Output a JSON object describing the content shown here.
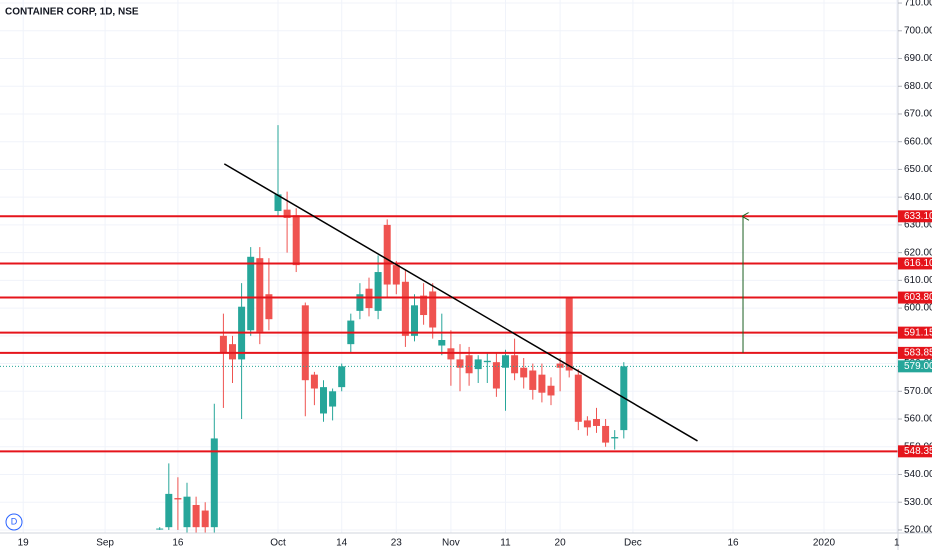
{
  "chart_data": {
    "type": "candlestick",
    "title": "CONTAINER CORP, 1D, NSE",
    "badge": "D",
    "categories": [
      "19",
      null,
      null,
      null,
      null,
      null,
      null,
      null,
      null,
      "Sep",
      null,
      null,
      null,
      null,
      null,
      null,
      null,
      "16",
      null,
      null,
      null,
      null,
      null,
      null,
      null,
      null,
      null,
      null,
      "Oct",
      null,
      null,
      null,
      null,
      null,
      null,
      "14",
      null,
      null,
      null,
      null,
      null,
      "23",
      null,
      null,
      null,
      null,
      null,
      "Nov",
      null,
      null,
      null,
      null,
      null,
      "11",
      null,
      null,
      null,
      null,
      null,
      "20",
      null,
      null,
      null,
      null,
      null,
      null,
      null,
      "Dec",
      null,
      null,
      null,
      null,
      null,
      null,
      null,
      null,
      null,
      null,
      "16",
      null,
      null,
      null,
      null,
      null,
      null,
      null,
      null,
      null,
      "2020",
      null,
      null,
      null,
      null,
      null,
      null,
      null,
      "1"
    ],
    "open": [
      null,
      null,
      null,
      null,
      null,
      null,
      null,
      null,
      null,
      null,
      null,
      null,
      null,
      null,
      null,
      520.2,
      521,
      531.5,
      521,
      529,
      527,
      521,
      590,
      587,
      581.5,
      592,
      618,
      605,
      635,
      635.5,
      633.5,
      601,
      576,
      562,
      564.5,
      571.5,
      587,
      599,
      607,
      599,
      630,
      615.5,
      609.5,
      590,
      604.5,
      606,
      586.5,
      585.5,
      581.5,
      583,
      578,
      580.5,
      580.5,
      578.5,
      583,
      578.5,
      577.5,
      576,
      572,
      580,
      603.5,
      576,
      559.5,
      560,
      557.5,
      553,
      556,
      null,
      null,
      null,
      null,
      null,
      null,
      null,
      null,
      null,
      null,
      null,
      null,
      null,
      null,
      null,
      null,
      null,
      null,
      null,
      null,
      null,
      null,
      null,
      null,
      null,
      null,
      null,
      null,
      null,
      null
    ],
    "high": [
      null,
      null,
      null,
      null,
      null,
      null,
      null,
      null,
      null,
      null,
      null,
      null,
      null,
      null,
      null,
      521,
      544,
      539,
      537,
      532,
      530,
      565.5,
      598,
      590,
      609,
      622,
      622,
      618,
      666,
      642,
      636,
      602,
      577,
      574,
      571,
      580,
      598,
      609,
      611,
      619,
      632,
      617,
      614,
      605,
      609,
      609,
      598,
      592,
      587,
      586,
      583,
      584,
      584,
      585,
      589,
      582,
      580,
      580,
      575,
      582,
      604,
      578,
      561,
      564,
      560,
      556,
      580.5,
      null,
      null,
      null,
      null,
      null,
      null,
      null,
      null,
      null,
      null,
      null,
      null,
      null,
      null,
      null,
      null,
      null,
      null,
      null,
      null,
      null,
      null,
      null,
      null,
      null,
      null,
      null,
      null,
      null,
      null
    ],
    "low": [
      null,
      null,
      null,
      null,
      null,
      null,
      null,
      null,
      null,
      null,
      null,
      null,
      null,
      null,
      null,
      520,
      520,
      520,
      519,
      519,
      519,
      519,
      564,
      573,
      560,
      590,
      587,
      592,
      633,
      620,
      613,
      561,
      565,
      559,
      559.5,
      570,
      584,
      596,
      597,
      596,
      604,
      605,
      586,
      588,
      594,
      589,
      583,
      572,
      570,
      572,
      573,
      573,
      568,
      563,
      574,
      571,
      567,
      566,
      565,
      570,
      575,
      556,
      554,
      555,
      550,
      549,
      553,
      null,
      null,
      null,
      null,
      null,
      null,
      null,
      null,
      null,
      null,
      null,
      null,
      null,
      null,
      null,
      null,
      null,
      null,
      null,
      null,
      null,
      null,
      null,
      null,
      null,
      null,
      null,
      null,
      null,
      null
    ],
    "close": [
      null,
      null,
      null,
      null,
      null,
      null,
      null,
      null,
      null,
      null,
      null,
      null,
      null,
      null,
      null,
      520.5,
      533,
      531,
      532,
      521,
      521,
      553,
      584,
      581.5,
      600.5,
      618.5,
      591.5,
      596,
      641,
      632.5,
      615.5,
      574,
      571,
      571.5,
      570,
      579,
      595.5,
      605,
      600,
      613,
      608.5,
      608.5,
      590,
      601,
      597.5,
      593,
      588.5,
      581.5,
      578.5,
      576.5,
      581.5,
      581,
      571,
      583,
      576.5,
      575,
      570.5,
      569.5,
      568.5,
      578.5,
      577.5,
      559,
      557,
      557.5,
      551.5,
      553.5,
      579,
      null,
      null,
      null,
      null,
      null,
      null,
      null,
      null,
      null,
      null,
      null,
      null,
      null,
      null,
      null,
      null,
      null,
      null,
      null,
      null,
      null,
      null,
      null,
      null,
      null,
      null,
      null,
      null,
      null,
      null
    ],
    "up_color": "#26a69a",
    "down_color": "#ef5350",
    "ylim": [
      518.9,
      711.1
    ],
    "yticks": [
      {
        "value": 520,
        "label": "520.00"
      },
      {
        "value": 530,
        "label": "530.00"
      },
      {
        "value": 540,
        "label": "540.00"
      },
      {
        "value": 550,
        "label": "550.00"
      },
      {
        "value": 560,
        "label": "560.00"
      },
      {
        "value": 570,
        "label": "570.00"
      },
      {
        "value": 580,
        "label": "580.00"
      },
      {
        "value": 590,
        "label": "590.00"
      },
      {
        "value": 600,
        "label": "600.00"
      },
      {
        "value": 610,
        "label": "610.00"
      },
      {
        "value": 620,
        "label": "620.00"
      },
      {
        "value": 630,
        "label": "630.00"
      },
      {
        "value": 640,
        "label": "640.00"
      },
      {
        "value": 650,
        "label": "650.00"
      },
      {
        "value": 660,
        "label": "660.00"
      },
      {
        "value": 670,
        "label": "670.00"
      },
      {
        "value": 680,
        "label": "680.00"
      },
      {
        "value": 690,
        "label": "690.00"
      },
      {
        "value": 700,
        "label": "700.00"
      },
      {
        "value": 710,
        "label": "710.00"
      }
    ],
    "grid": true,
    "levels": [
      {
        "value": 633.1,
        "label": "633.10"
      },
      {
        "value": 616.1,
        "label": "616.10"
      },
      {
        "value": 603.8,
        "label": "603.80"
      },
      {
        "value": 591.15,
        "label": "591.15"
      },
      {
        "value": 583.85,
        "label": "583.85"
      },
      {
        "value": 548.35,
        "label": "548.35"
      }
    ],
    "level_color": "#e5141b",
    "last_price": {
      "value": 579,
      "label": "579.00",
      "color": "#26a69a"
    },
    "trendline": {
      "x": [
        22.1,
        74.1
      ],
      "y": [
        652,
        552.1
      ],
      "color": "#000000"
    },
    "arrow": {
      "x": 79.1,
      "y": [
        583.85,
        633.1
      ],
      "color": "#1b5e20"
    }
  }
}
